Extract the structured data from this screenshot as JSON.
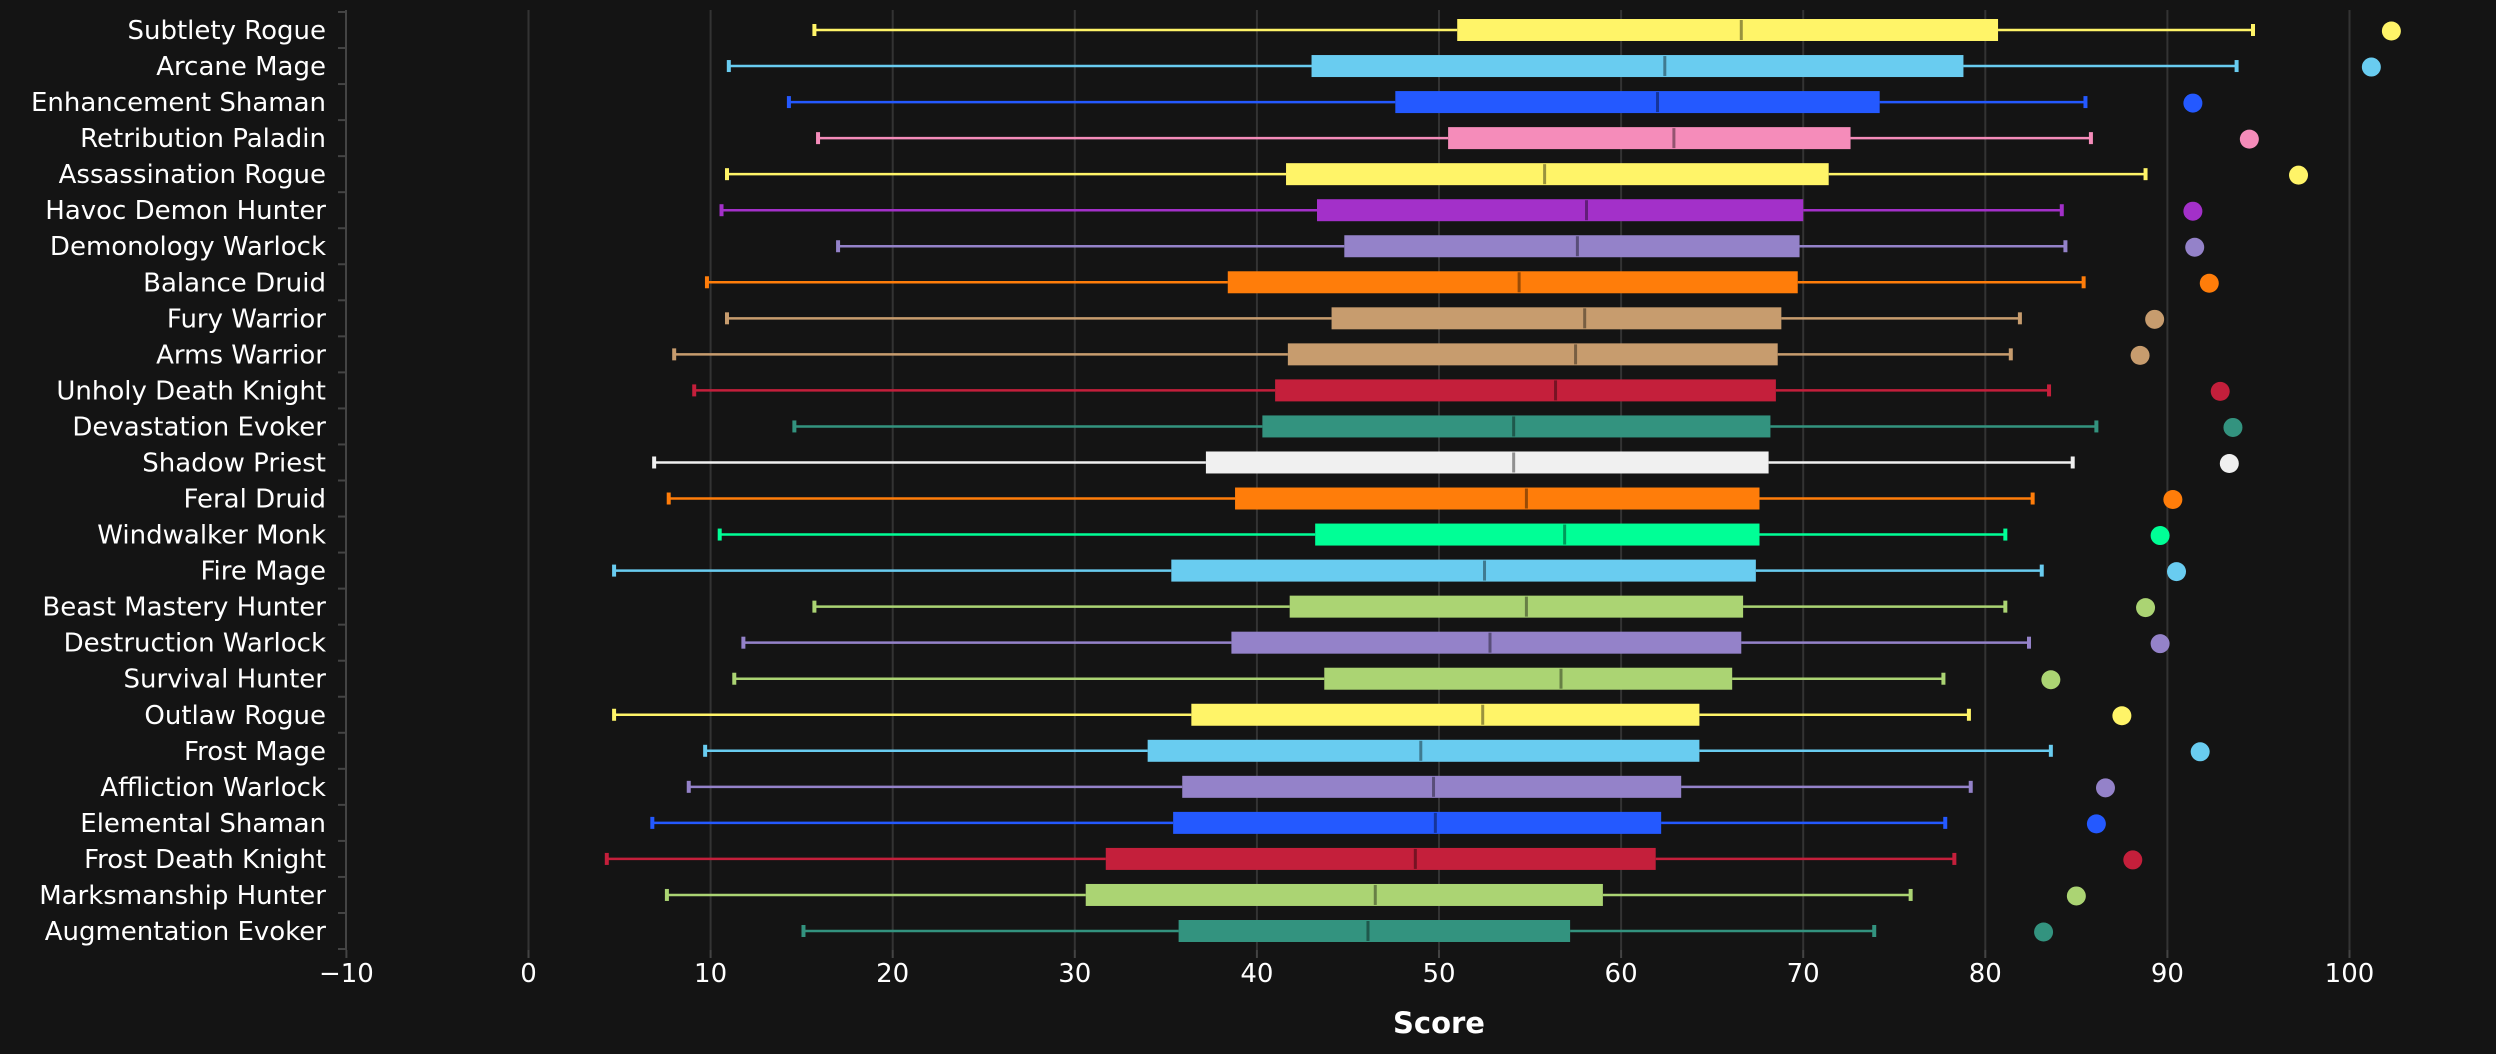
{
  "chart_data": {
    "type": "boxplot",
    "title": "",
    "xlabel": "Score",
    "ylabel": "",
    "xlim": [
      -10,
      105
    ],
    "xticks": [
      -10,
      0,
      10,
      20,
      30,
      40,
      50,
      60,
      70,
      80,
      90,
      100
    ],
    "grid": true,
    "legend": "none",
    "series": [
      {
        "name": "Subtlety Rogue",
        "color": "#fff468",
        "min": 15.7,
        "q1": 51.0,
        "median": 66.6,
        "q3": 80.7,
        "max": 94.7,
        "point": 102.3
      },
      {
        "name": "Arcane Mage",
        "color": "#69ccf0",
        "min": 11.0,
        "q1": 43.0,
        "median": 62.4,
        "q3": 78.8,
        "max": 93.8,
        "point": 101.2
      },
      {
        "name": "Enhancement Shaman",
        "color": "#2459ff",
        "min": 14.3,
        "q1": 47.6,
        "median": 62.0,
        "q3": 74.2,
        "max": 85.5,
        "point": 91.4
      },
      {
        "name": "Retribution Paladin",
        "color": "#f58cba",
        "min": 15.9,
        "q1": 50.5,
        "median": 62.9,
        "q3": 72.6,
        "max": 85.8,
        "point": 94.5
      },
      {
        "name": "Assassination Rogue",
        "color": "#fff468",
        "min": 10.9,
        "q1": 41.6,
        "median": 55.8,
        "q3": 71.4,
        "max": 88.8,
        "point": 97.2
      },
      {
        "name": "Havoc Demon Hunter",
        "color": "#a330c9",
        "min": 10.6,
        "q1": 43.3,
        "median": 58.1,
        "q3": 70.0,
        "max": 84.2,
        "point": 91.4
      },
      {
        "name": "Demonology Warlock",
        "color": "#9482c9",
        "min": 17.0,
        "q1": 44.8,
        "median": 57.6,
        "q3": 69.8,
        "max": 84.4,
        "point": 91.5
      },
      {
        "name": "Balance Druid",
        "color": "#ff7d0a",
        "min": 9.8,
        "q1": 38.4,
        "median": 54.4,
        "q3": 69.7,
        "max": 85.4,
        "point": 92.3
      },
      {
        "name": "Fury Warrior",
        "color": "#c79c6e",
        "min": 10.9,
        "q1": 44.1,
        "median": 58.0,
        "q3": 68.8,
        "max": 81.9,
        "point": 89.3
      },
      {
        "name": "Arms Warrior",
        "color": "#c79c6e",
        "min": 8.0,
        "q1": 41.7,
        "median": 57.5,
        "q3": 68.6,
        "max": 81.4,
        "point": 88.5
      },
      {
        "name": "Unholy Death Knight",
        "color": "#c41f3b",
        "min": 9.1,
        "q1": 41.0,
        "median": 56.4,
        "q3": 68.5,
        "max": 83.5,
        "point": 92.9
      },
      {
        "name": "Devastation Evoker",
        "color": "#33937f",
        "min": 14.6,
        "q1": 40.3,
        "median": 54.1,
        "q3": 68.2,
        "max": 86.1,
        "point": 93.6
      },
      {
        "name": "Shadow Priest",
        "color": "#f0f0f0",
        "min": 6.9,
        "q1": 37.2,
        "median": 54.1,
        "q3": 68.1,
        "max": 84.8,
        "point": 93.4
      },
      {
        "name": "Feral Druid",
        "color": "#ff7d0a",
        "min": 7.7,
        "q1": 38.8,
        "median": 54.8,
        "q3": 67.6,
        "max": 82.6,
        "point": 90.3
      },
      {
        "name": "Windwalker Monk",
        "color": "#00ff96",
        "min": 10.5,
        "q1": 43.2,
        "median": 56.9,
        "q3": 67.6,
        "max": 81.1,
        "point": 89.6
      },
      {
        "name": "Fire Mage",
        "color": "#69ccf0",
        "min": 4.7,
        "q1": 35.3,
        "median": 52.5,
        "q3": 67.4,
        "max": 83.1,
        "point": 90.5
      },
      {
        "name": "Beast Mastery Hunter",
        "color": "#abd473",
        "min": 15.7,
        "q1": 41.8,
        "median": 54.8,
        "q3": 66.7,
        "max": 81.1,
        "point": 88.8
      },
      {
        "name": "Destruction Warlock",
        "color": "#9482c9",
        "min": 11.8,
        "q1": 38.6,
        "median": 52.8,
        "q3": 66.6,
        "max": 82.4,
        "point": 89.6
      },
      {
        "name": "Survival Hunter",
        "color": "#abd473",
        "min": 11.3,
        "q1": 43.7,
        "median": 56.7,
        "q3": 66.1,
        "max": 77.7,
        "point": 83.6
      },
      {
        "name": "Outlaw Rogue",
        "color": "#fff468",
        "min": 4.7,
        "q1": 36.4,
        "median": 52.4,
        "q3": 64.3,
        "max": 79.1,
        "point": 87.5
      },
      {
        "name": "Frost Mage",
        "color": "#69ccf0",
        "min": 9.7,
        "q1": 34.0,
        "median": 49.0,
        "q3": 64.3,
        "max": 83.6,
        "point": 91.8
      },
      {
        "name": "Affliction Warlock",
        "color": "#9482c9",
        "min": 8.8,
        "q1": 35.9,
        "median": 49.7,
        "q3": 63.3,
        "max": 79.2,
        "point": 86.6
      },
      {
        "name": "Elemental Shaman",
        "color": "#2459ff",
        "min": 6.8,
        "q1": 35.4,
        "median": 49.8,
        "q3": 62.2,
        "max": 77.8,
        "point": 86.1
      },
      {
        "name": "Frost Death Knight",
        "color": "#c41f3b",
        "min": 4.3,
        "q1": 31.7,
        "median": 48.7,
        "q3": 61.9,
        "max": 78.3,
        "point": 88.1
      },
      {
        "name": "Marksmanship Hunter",
        "color": "#abd473",
        "min": 7.6,
        "q1": 30.6,
        "median": 46.5,
        "q3": 59.0,
        "max": 75.9,
        "point": 85.0
      },
      {
        "name": "Augmentation Evoker",
        "color": "#33937f",
        "min": 15.1,
        "q1": 35.7,
        "median": 46.1,
        "q3": 57.2,
        "max": 73.9,
        "point": 83.2
      }
    ]
  }
}
